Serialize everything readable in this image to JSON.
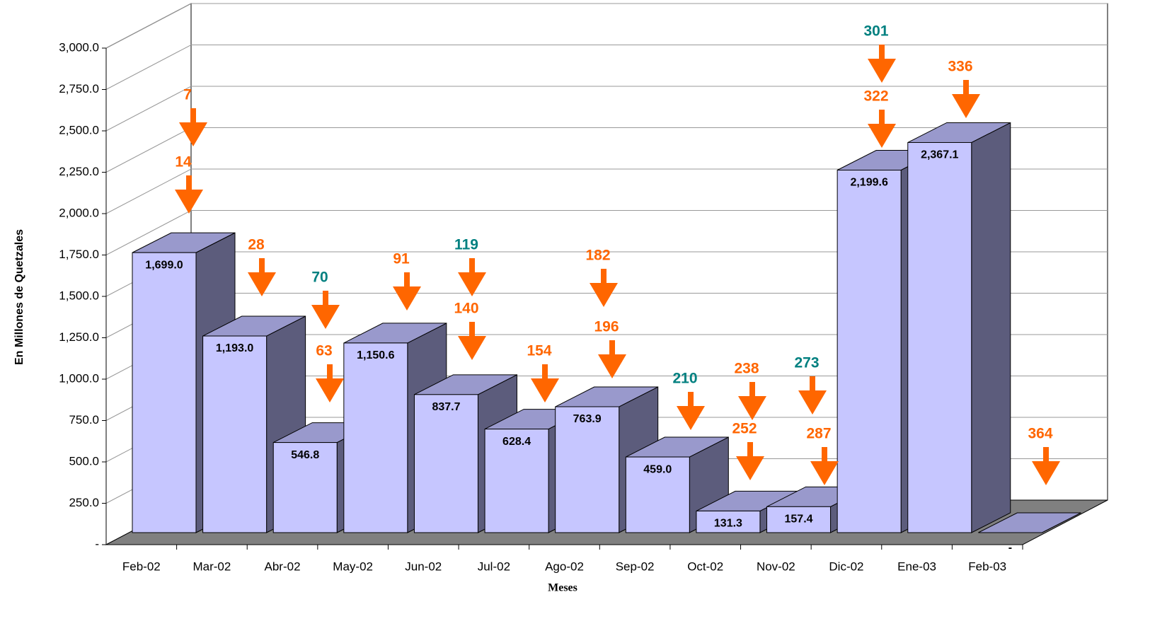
{
  "chart_data": {
    "type": "bar3d",
    "y_label": "En Millones de Quetzales",
    "x_label": "Meses",
    "categories": [
      "Feb-02",
      "Mar-02",
      "Abr-02",
      "May-02",
      "Jun-02",
      "Jul-02",
      "Ago-02",
      "Sep-02",
      "Oct-02",
      "Nov-02",
      "Dic-02",
      "Ene-03",
      "Feb-03"
    ],
    "values": [
      1699.0,
      1193.0,
      546.8,
      1150.6,
      837.7,
      628.4,
      763.9,
      459.0,
      131.3,
      157.4,
      2199.6,
      2367.1,
      0
    ],
    "value_labels": [
      "1,699.0",
      "1,193.0",
      "546.8",
      "1,150.6",
      "837.7",
      "628.4",
      "763.9",
      "459.0",
      "131.3",
      "157.4",
      "2,199.6",
      "2,367.1",
      "-"
    ],
    "color": "#c6c6ff",
    "side_color": "#5c5c7c",
    "top_color": "#9999cc",
    "ylim": [
      0,
      3000
    ],
    "yticks": [
      {
        "value": 0,
        "label": "-"
      },
      {
        "value": 250,
        "label": "250.0"
      },
      {
        "value": 500,
        "label": "500.0"
      },
      {
        "value": 750,
        "label": "750.0"
      },
      {
        "value": 1000,
        "label": "1,000.0"
      },
      {
        "value": 1250,
        "label": "1,250.0"
      },
      {
        "value": 1500,
        "label": "1,500.0"
      },
      {
        "value": 1750,
        "label": "1,750.0"
      },
      {
        "value": 2000,
        "label": "2,000.0"
      },
      {
        "value": 2250,
        "label": "2,250.0"
      },
      {
        "value": 2500,
        "label": "2,500.0"
      },
      {
        "value": 2750,
        "label": "2,750.0"
      },
      {
        "value": 3000,
        "label": "3,000.0"
      }
    ],
    "grid": true,
    "annotations": [
      {
        "text": "7",
        "color": "#ff6600"
      },
      {
        "text": "14",
        "color": "#ff6600"
      },
      {
        "text": "28",
        "color": "#ff6600"
      },
      {
        "text": "70",
        "color": "#008080"
      },
      {
        "text": "63",
        "color": "#ff6600"
      },
      {
        "text": "91",
        "color": "#ff6600"
      },
      {
        "text": "119",
        "color": "#008080"
      },
      {
        "text": "140",
        "color": "#ff6600"
      },
      {
        "text": "154",
        "color": "#ff6600"
      },
      {
        "text": "182",
        "color": "#ff6600"
      },
      {
        "text": "196",
        "color": "#ff6600"
      },
      {
        "text": "210",
        "color": "#008080"
      },
      {
        "text": "238",
        "color": "#ff6600"
      },
      {
        "text": "252",
        "color": "#ff6600"
      },
      {
        "text": "273",
        "color": "#008080"
      },
      {
        "text": "287",
        "color": "#ff6600"
      },
      {
        "text": "301",
        "color": "#008080"
      },
      {
        "text": "322",
        "color": "#ff6600"
      },
      {
        "text": "336",
        "color": "#ff6600"
      },
      {
        "text": "364",
        "color": "#ff6600"
      }
    ]
  }
}
